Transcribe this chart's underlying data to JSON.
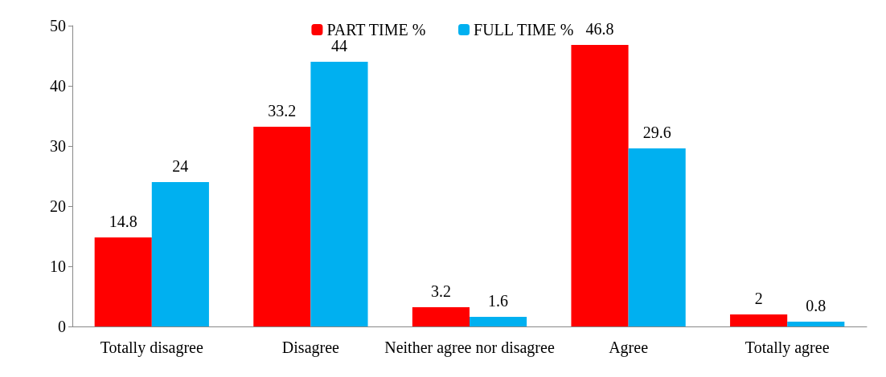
{
  "chart_data": {
    "type": "bar",
    "categories": [
      "Totally disagree",
      "Disagree",
      "Neither agree nor disagree",
      "Agree",
      "Totally agree"
    ],
    "series": [
      {
        "name": "PART TIME %",
        "color": "#ff0000",
        "values": [
          14.8,
          33.2,
          3.2,
          46.8,
          2
        ]
      },
      {
        "name": "FULL TIME %",
        "color": "#00b0f0",
        "values": [
          24,
          44,
          1.6,
          29.6,
          0.8
        ]
      }
    ],
    "ylim": [
      0,
      50
    ],
    "yticks": [
      0,
      10,
      20,
      30,
      40,
      50
    ],
    "grid": false,
    "legend": "top",
    "data_labels": true
  }
}
